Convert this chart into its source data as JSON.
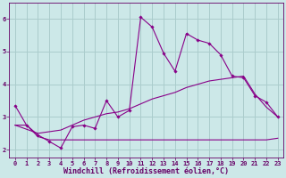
{
  "bg_color": "#cce8e8",
  "grid_color": "#aacccc",
  "line_color": "#880088",
  "marker_color": "#880088",
  "xlabel": "Windchill (Refroidissement éolien,°C)",
  "xlim": [
    -0.5,
    23.5
  ],
  "ylim": [
    1.75,
    6.5
  ],
  "yticks": [
    2,
    3,
    4,
    5,
    6
  ],
  "xticks": [
    0,
    1,
    2,
    3,
    4,
    5,
    6,
    7,
    8,
    9,
    10,
    11,
    12,
    13,
    14,
    15,
    16,
    17,
    18,
    19,
    20,
    21,
    22,
    23
  ],
  "line1_x": [
    0,
    1,
    2,
    3,
    4,
    5,
    6,
    7,
    8,
    9,
    10,
    11,
    12,
    13,
    14,
    15,
    16,
    17,
    18,
    19,
    20,
    21,
    22,
    23
  ],
  "line1_y": [
    3.35,
    2.75,
    2.45,
    2.25,
    2.05,
    2.7,
    2.75,
    2.65,
    3.5,
    3.0,
    3.2,
    6.05,
    5.75,
    4.95,
    4.4,
    5.55,
    5.35,
    5.25,
    4.9,
    4.25,
    4.2,
    3.65,
    3.45,
    3.0
  ],
  "line2_x": [
    0,
    1,
    2,
    3,
    4,
    5,
    6,
    7,
    8,
    9,
    10,
    11,
    12,
    13,
    14,
    15,
    16,
    17,
    18,
    19,
    20,
    21,
    22,
    23
  ],
  "line2_y": [
    2.75,
    2.75,
    2.4,
    2.3,
    2.3,
    2.3,
    2.3,
    2.3,
    2.3,
    2.3,
    2.3,
    2.3,
    2.3,
    2.3,
    2.3,
    2.3,
    2.3,
    2.3,
    2.3,
    2.3,
    2.3,
    2.3,
    2.3,
    2.35
  ],
  "line3_x": [
    0,
    2,
    4,
    5,
    6,
    7,
    8,
    9,
    10,
    11,
    12,
    13,
    14,
    15,
    16,
    17,
    18,
    19,
    20,
    21,
    22,
    23
  ],
  "line3_y": [
    2.75,
    2.5,
    2.6,
    2.75,
    2.9,
    3.0,
    3.1,
    3.15,
    3.25,
    3.4,
    3.55,
    3.65,
    3.75,
    3.9,
    4.0,
    4.1,
    4.15,
    4.2,
    4.25,
    3.7,
    3.3,
    3.0
  ],
  "font_color": "#660066",
  "tick_fontsize": 5.0,
  "xlabel_fontsize": 6.0
}
